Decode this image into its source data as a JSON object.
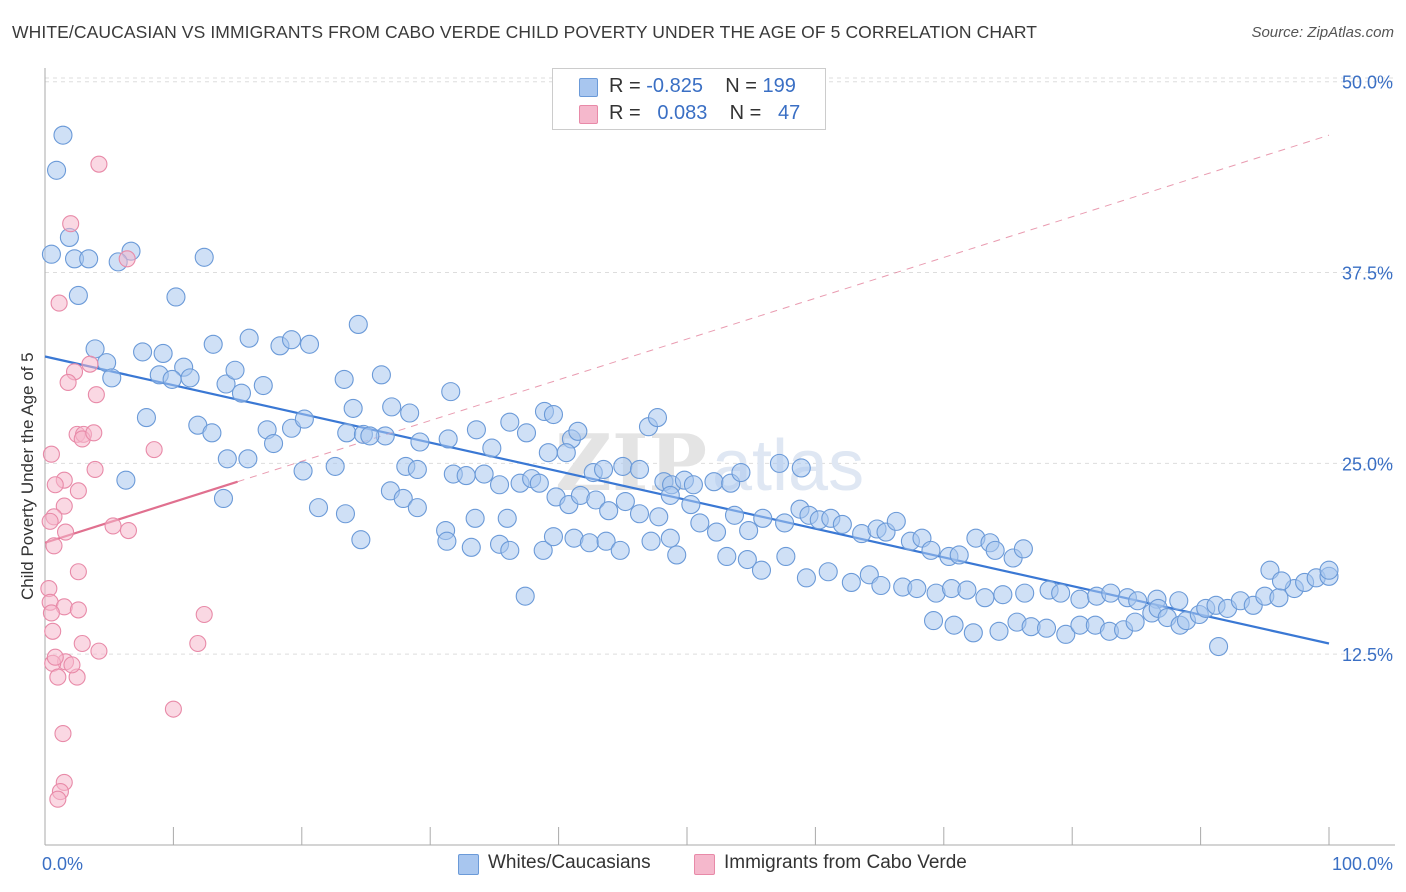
{
  "title": "WHITE/CAUCASIAN VS IMMIGRANTS FROM CABO VERDE CHILD POVERTY UNDER THE AGE OF 5 CORRELATION CHART",
  "source": "Source: ZipAtlas.com",
  "watermark": {
    "zip": "ZIP",
    "atlas": "atlas"
  },
  "legend": [
    {
      "r_label": "R =",
      "r_value": "-0.825",
      "n_label": "N =",
      "n_value": "199"
    },
    {
      "r_label": "R =",
      "r_value": "0.083",
      "n_label": "N =",
      "n_value": "47"
    }
  ],
  "colors": {
    "blue_fill": "#a8c6ef",
    "blue_stroke": "#6b9ad8",
    "blue_line": "#3a78d4",
    "pink_fill": "#f5b8cc",
    "pink_stroke": "#e88aa8",
    "pink_line": "#e0708f",
    "grid": "#dddddd",
    "tick_label": "#3a6fc4"
  },
  "chart_data": {
    "type": "scatter",
    "xlabel": "",
    "ylabel": "Child Poverty Under the Age of 5",
    "xlim": [
      0,
      100
    ],
    "ylim": [
      0,
      52
    ],
    "x_tick_labels": [
      "0.0%",
      "100.0%"
    ],
    "y_ticks": [
      12.5,
      25.0,
      37.5,
      50.0
    ],
    "y_tick_labels": [
      "12.5%",
      "25.0%",
      "37.5%",
      "50.0%"
    ],
    "grid": "horizontal dashed",
    "legend_position": "top-center",
    "series": [
      {
        "name": "Whites/Caucasians",
        "color": "#a8c6ef",
        "trend": {
          "x": [
            0,
            100
          ],
          "y": [
            32.0,
            13.2
          ],
          "style": "solid"
        },
        "points": [
          [
            1.4,
            46.5
          ],
          [
            0.9,
            44.2
          ],
          [
            1.9,
            39.8
          ],
          [
            0.5,
            38.7
          ],
          [
            2.3,
            38.4
          ],
          [
            3.4,
            38.4
          ],
          [
            6.7,
            38.9
          ],
          [
            5.7,
            38.2
          ],
          [
            12.4,
            38.5
          ],
          [
            2.6,
            36.0
          ],
          [
            10.2,
            35.9
          ],
          [
            3.9,
            32.5
          ],
          [
            7.6,
            32.3
          ],
          [
            9.2,
            32.2
          ],
          [
            10.8,
            31.3
          ],
          [
            13.1,
            32.8
          ],
          [
            15.9,
            33.2
          ],
          [
            18.3,
            32.7
          ],
          [
            19.2,
            33.1
          ],
          [
            20.6,
            32.8
          ],
          [
            24.4,
            34.1
          ],
          [
            4.8,
            31.6
          ],
          [
            5.2,
            30.6
          ],
          [
            8.9,
            30.8
          ],
          [
            9.9,
            30.5
          ],
          [
            11.3,
            30.6
          ],
          [
            14.1,
            30.2
          ],
          [
            14.8,
            31.1
          ],
          [
            15.3,
            29.6
          ],
          [
            17.0,
            30.1
          ],
          [
            23.3,
            30.5
          ],
          [
            26.2,
            30.8
          ],
          [
            27.0,
            28.7
          ],
          [
            28.4,
            28.3
          ],
          [
            31.6,
            29.7
          ],
          [
            24.0,
            28.6
          ],
          [
            7.9,
            28.0
          ],
          [
            11.9,
            27.5
          ],
          [
            13.0,
            27.0
          ],
          [
            17.3,
            27.2
          ],
          [
            17.8,
            26.3
          ],
          [
            19.2,
            27.3
          ],
          [
            20.2,
            27.9
          ],
          [
            23.5,
            27.0
          ],
          [
            24.8,
            26.9
          ],
          [
            26.5,
            26.8
          ],
          [
            29.2,
            26.4
          ],
          [
            31.4,
            26.6
          ],
          [
            33.6,
            27.2
          ],
          [
            34.8,
            26.0
          ],
          [
            36.2,
            27.7
          ],
          [
            37.5,
            27.0
          ],
          [
            38.9,
            28.4
          ],
          [
            39.6,
            28.2
          ],
          [
            41.0,
            26.6
          ],
          [
            41.5,
            27.1
          ],
          [
            47.0,
            27.4
          ],
          [
            47.7,
            28.0
          ],
          [
            14.2,
            25.3
          ],
          [
            15.8,
            25.3
          ],
          [
            20.1,
            24.5
          ],
          [
            22.6,
            24.8
          ],
          [
            25.3,
            26.8
          ],
          [
            28.1,
            24.8
          ],
          [
            29.0,
            24.6
          ],
          [
            31.8,
            24.3
          ],
          [
            32.8,
            24.2
          ],
          [
            34.2,
            24.3
          ],
          [
            35.4,
            23.6
          ],
          [
            37.0,
            23.7
          ],
          [
            37.9,
            24.0
          ],
          [
            38.5,
            23.7
          ],
          [
            39.2,
            25.7
          ],
          [
            40.6,
            25.7
          ],
          [
            42.7,
            24.4
          ],
          [
            43.5,
            24.6
          ],
          [
            45.0,
            24.8
          ],
          [
            46.3,
            24.6
          ],
          [
            48.2,
            23.8
          ],
          [
            48.8,
            23.6
          ],
          [
            49.8,
            23.9
          ],
          [
            50.5,
            23.6
          ],
          [
            52.1,
            23.8
          ],
          [
            53.4,
            23.7
          ],
          [
            6.3,
            23.9
          ],
          [
            13.9,
            22.7
          ],
          [
            21.3,
            22.1
          ],
          [
            23.4,
            21.7
          ],
          [
            26.9,
            23.2
          ],
          [
            27.9,
            22.7
          ],
          [
            29.0,
            22.1
          ],
          [
            31.2,
            20.6
          ],
          [
            33.5,
            21.4
          ],
          [
            36.0,
            21.4
          ],
          [
            39.8,
            22.8
          ],
          [
            40.8,
            22.3
          ],
          [
            41.7,
            22.9
          ],
          [
            42.9,
            22.6
          ],
          [
            43.9,
            21.9
          ],
          [
            45.2,
            22.5
          ],
          [
            46.3,
            21.7
          ],
          [
            47.8,
            21.5
          ],
          [
            48.7,
            22.9
          ],
          [
            50.3,
            22.3
          ],
          [
            51.0,
            21.1
          ],
          [
            52.3,
            20.5
          ],
          [
            53.7,
            21.6
          ],
          [
            54.8,
            20.6
          ],
          [
            55.9,
            21.4
          ],
          [
            57.6,
            21.1
          ],
          [
            58.8,
            22.0
          ],
          [
            59.5,
            21.6
          ],
          [
            60.3,
            21.3
          ],
          [
            61.2,
            21.4
          ],
          [
            62.1,
            21.0
          ],
          [
            63.6,
            20.4
          ],
          [
            64.8,
            20.7
          ],
          [
            65.5,
            20.5
          ],
          [
            66.3,
            21.2
          ],
          [
            67.4,
            19.9
          ],
          [
            68.3,
            20.1
          ],
          [
            69.0,
            19.3
          ],
          [
            70.4,
            18.9
          ],
          [
            71.2,
            19.0
          ],
          [
            72.5,
            20.1
          ],
          [
            73.6,
            19.8
          ],
          [
            74.0,
            19.3
          ],
          [
            75.4,
            18.8
          ],
          [
            76.2,
            19.4
          ],
          [
            24.6,
            20.0
          ],
          [
            31.3,
            19.9
          ],
          [
            33.2,
            19.5
          ],
          [
            35.4,
            19.7
          ],
          [
            36.2,
            19.3
          ],
          [
            38.8,
            19.3
          ],
          [
            39.6,
            20.2
          ],
          [
            41.2,
            20.1
          ],
          [
            42.4,
            19.8
          ],
          [
            43.7,
            19.9
          ],
          [
            44.8,
            19.3
          ],
          [
            47.2,
            19.9
          ],
          [
            48.7,
            20.1
          ],
          [
            49.2,
            19.0
          ],
          [
            53.1,
            18.9
          ],
          [
            54.7,
            18.7
          ],
          [
            55.8,
            18.0
          ],
          [
            57.7,
            18.9
          ],
          [
            59.3,
            17.5
          ],
          [
            61.0,
            17.9
          ],
          [
            62.8,
            17.2
          ],
          [
            64.2,
            17.7
          ],
          [
            65.1,
            17.0
          ],
          [
            66.8,
            16.9
          ],
          [
            67.9,
            16.8
          ],
          [
            69.4,
            16.5
          ],
          [
            70.6,
            16.8
          ],
          [
            71.8,
            16.7
          ],
          [
            73.2,
            16.2
          ],
          [
            74.6,
            16.4
          ],
          [
            76.3,
            16.5
          ],
          [
            78.2,
            16.7
          ],
          [
            79.1,
            16.5
          ],
          [
            80.6,
            16.1
          ],
          [
            81.9,
            16.3
          ],
          [
            83.0,
            16.5
          ],
          [
            84.3,
            16.2
          ],
          [
            85.1,
            16.0
          ],
          [
            86.6,
            16.1
          ],
          [
            88.3,
            16.0
          ],
          [
            37.4,
            16.3
          ],
          [
            69.2,
            14.7
          ],
          [
            70.8,
            14.4
          ],
          [
            72.3,
            13.9
          ],
          [
            74.3,
            14.0
          ],
          [
            75.7,
            14.6
          ],
          [
            76.8,
            14.3
          ],
          [
            78.0,
            14.2
          ],
          [
            79.5,
            13.8
          ],
          [
            80.6,
            14.4
          ],
          [
            81.8,
            14.4
          ],
          [
            82.9,
            14.0
          ],
          [
            84.0,
            14.1
          ],
          [
            84.9,
            14.6
          ],
          [
            86.2,
            15.2
          ],
          [
            86.7,
            15.5
          ],
          [
            87.4,
            14.9
          ],
          [
            88.4,
            14.4
          ],
          [
            88.9,
            14.7
          ],
          [
            89.9,
            15.1
          ],
          [
            90.4,
            15.5
          ],
          [
            91.2,
            15.7
          ],
          [
            92.1,
            15.5
          ],
          [
            93.1,
            16.0
          ],
          [
            94.1,
            15.7
          ],
          [
            95.0,
            16.3
          ],
          [
            96.1,
            16.2
          ],
          [
            97.3,
            16.8
          ],
          [
            98.1,
            17.2
          ],
          [
            99.0,
            17.5
          ],
          [
            100.0,
            17.6
          ],
          [
            100.0,
            18.0
          ],
          [
            95.4,
            18.0
          ],
          [
            96.3,
            17.3
          ],
          [
            91.4,
            13.0
          ],
          [
            57.2,
            25.0
          ],
          [
            58.9,
            24.7
          ],
          [
            54.2,
            24.4
          ]
        ]
      },
      {
        "name": "Immigrants from Cabo Verde",
        "color": "#f5b8cc",
        "trend": {
          "x": [
            0,
            15
          ],
          "y": [
            19.8,
            23.8
          ],
          "style": "solid"
        },
        "trend_extension": {
          "x": [
            15,
            100
          ],
          "y": [
            23.8,
            46.5
          ],
          "style": "dashed"
        },
        "points": [
          [
            4.2,
            44.6
          ],
          [
            2.0,
            40.7
          ],
          [
            6.4,
            38.4
          ],
          [
            1.1,
            35.5
          ],
          [
            3.5,
            31.5
          ],
          [
            2.3,
            31.0
          ],
          [
            1.8,
            30.3
          ],
          [
            4.0,
            29.5
          ],
          [
            2.5,
            26.9
          ],
          [
            3.0,
            26.9
          ],
          [
            2.9,
            26.6
          ],
          [
            8.5,
            25.9
          ],
          [
            0.5,
            25.6
          ],
          [
            3.9,
            24.6
          ],
          [
            1.5,
            23.9
          ],
          [
            0.8,
            23.6
          ],
          [
            2.6,
            23.2
          ],
          [
            1.5,
            22.2
          ],
          [
            0.7,
            21.5
          ],
          [
            0.4,
            21.2
          ],
          [
            5.3,
            20.9
          ],
          [
            6.5,
            20.6
          ],
          [
            1.6,
            20.5
          ],
          [
            2.6,
            17.9
          ],
          [
            0.3,
            16.8
          ],
          [
            0.4,
            15.9
          ],
          [
            1.5,
            15.6
          ],
          [
            2.6,
            15.4
          ],
          [
            0.5,
            15.2
          ],
          [
            12.4,
            15.1
          ],
          [
            0.6,
            14.0
          ],
          [
            2.9,
            13.2
          ],
          [
            11.9,
            13.2
          ],
          [
            4.2,
            12.7
          ],
          [
            1.6,
            12.0
          ],
          [
            0.6,
            11.9
          ],
          [
            1.0,
            11.0
          ],
          [
            2.5,
            11.0
          ],
          [
            10.0,
            8.9
          ],
          [
            1.4,
            7.3
          ],
          [
            1.5,
            4.1
          ],
          [
            1.2,
            3.5
          ],
          [
            1.0,
            3.0
          ],
          [
            0.8,
            12.3
          ],
          [
            2.1,
            11.8
          ],
          [
            3.8,
            27.0
          ],
          [
            0.7,
            19.6
          ]
        ]
      }
    ]
  }
}
